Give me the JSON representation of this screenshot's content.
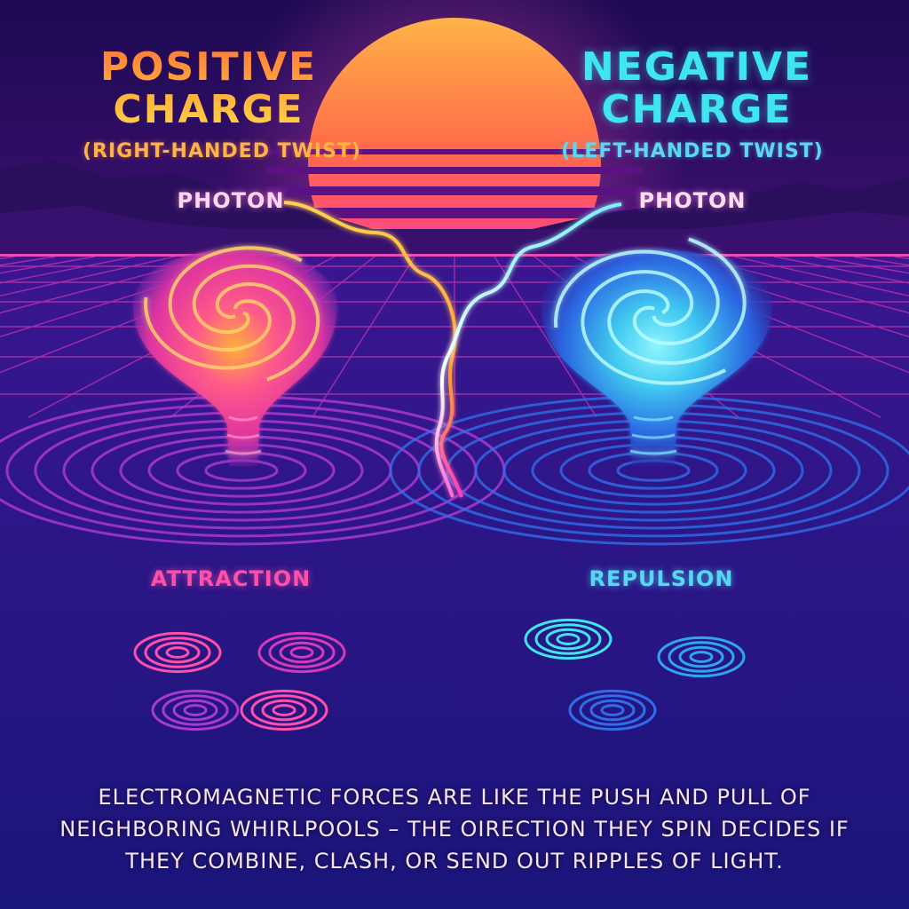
{
  "left_charge": {
    "title_line1": "POSITIVE",
    "title_line2": "CHARGE",
    "subtitle": "(RIGHT-HANDED TWIST)",
    "photon_label": "PHOTON",
    "force_label": "ATTRACTION",
    "accent_color": "#ff4fa8"
  },
  "right_charge": {
    "title_line1": "NEGATIVE",
    "title_line2": "CHARGE",
    "subtitle": "(LEFT-HANDED TWIST)",
    "photon_label": "PHOTON",
    "force_label": "REPULSION",
    "accent_color": "#3fe6f0"
  },
  "caption": "ELECTROMAGNETIC FORCES ARE LIKE THE PUSH AND PULL OF NEIGHBORING WHIRLPOOLS – THE OIRECTION THEY SPIN DECIDES IF THEY COMBINE, CLASH, OR SEND OUT RIPPLES OF LIGHT.",
  "colors": {
    "sky_top": "#1c0a52",
    "sun_top": "#ffb347",
    "sun_bottom": "#ff2bb0",
    "grid": "#ff3fbf",
    "water": "#2a1a9a"
  }
}
